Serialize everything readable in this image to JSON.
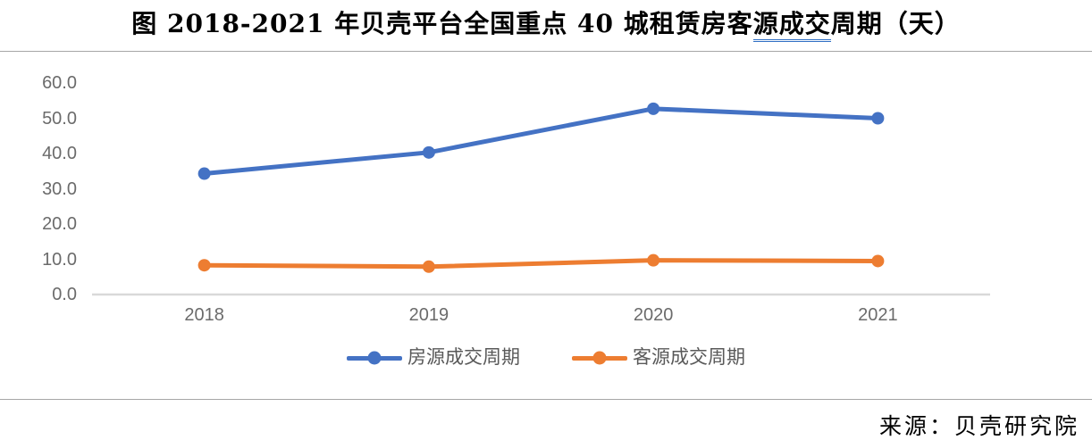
{
  "title": {
    "part1": "图  2018-2021 年贝壳平台全国重点 40 城租赁房客",
    "underlined": "源成交",
    "part2": "周期（天）"
  },
  "source": "来源：贝壳研究院",
  "colors": {
    "series1": "#4472c4",
    "series2": "#ed7d31",
    "axis_line": "#d9d9d9",
    "axis_text": "#6b6b6b",
    "legend_text": "#595959",
    "rule": "#a6a6a6",
    "title_underline": "#2f6fc4"
  },
  "chart_data": {
    "type": "line",
    "title": "图 2018-2021 年贝壳平台全国重点 40 城租赁房客源成交周期（天）",
    "categories": [
      "2018",
      "2019",
      "2020",
      "2021"
    ],
    "series": [
      {
        "name": "房源成交周期",
        "color": "#4472c4",
        "values": [
          34.3,
          40.3,
          52.7,
          50.0
        ]
      },
      {
        "name": "客源成交周期",
        "color": "#ed7d31",
        "values": [
          8.3,
          7.9,
          9.7,
          9.5
        ]
      }
    ],
    "ylim": [
      0,
      60
    ],
    "y_ticks": [
      "60.0",
      "50.0",
      "40.0",
      "30.0",
      "20.0",
      "10.0",
      "0.0"
    ],
    "xlabel": "",
    "ylabel": "",
    "grid": false,
    "legend_position": "bottom",
    "marker": "circle"
  }
}
